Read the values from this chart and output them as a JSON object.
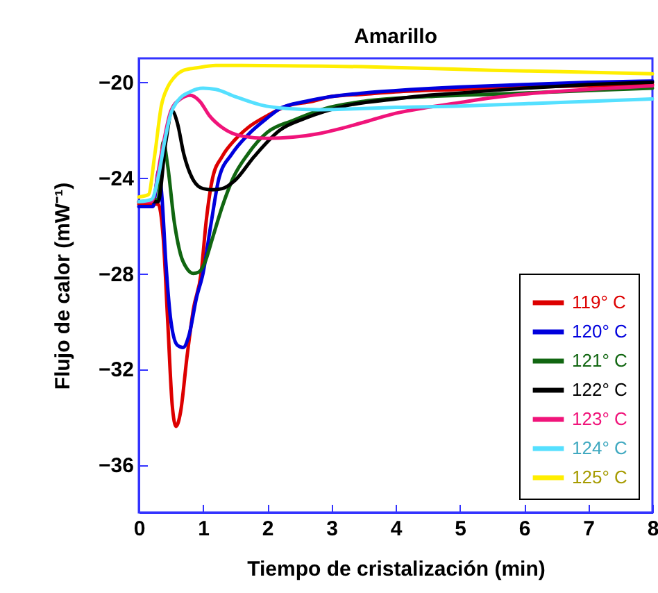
{
  "chart_data": {
    "type": "line",
    "title": "Amarillo",
    "xlabel": "Tiempo de cristalización (min)",
    "ylabel": "Flujo de calor (mW⁻¹)",
    "xlim": [
      0,
      8
    ],
    "xticks": [
      0,
      1,
      2,
      3,
      4,
      5,
      6,
      7,
      8
    ],
    "ylim": [
      -38,
      -19
    ],
    "yticks": [
      -36,
      -32,
      -28,
      -24,
      -20
    ],
    "grid": false,
    "legend": "bottom right",
    "marker": "none",
    "line_style": "solid",
    "series": [
      {
        "name": "119° C",
        "color": "#dd0000",
        "x": [
          0,
          0.3,
          0.38,
          0.45,
          0.52,
          0.58,
          0.65,
          0.75,
          0.85,
          0.97,
          1.05,
          1.15,
          1.3,
          1.5,
          1.7,
          2.0,
          2.3,
          2.7,
          3.0,
          3.5,
          4,
          5,
          6,
          7,
          8
        ],
        "values": [
          -25.1,
          -25.1,
          -26.5,
          -30,
          -33.5,
          -34.4,
          -33.8,
          -31.5,
          -29.5,
          -28,
          -25.8,
          -24,
          -23.1,
          -22.4,
          -21.9,
          -21.4,
          -21,
          -20.8,
          -20.6,
          -20.5,
          -20.4,
          -20.3,
          -20.2,
          -20.15,
          -20.1
        ]
      },
      {
        "name": "120° C",
        "color": "#0000dd",
        "x": [
          0,
          0.22,
          0.31,
          0.36,
          0.42,
          0.5,
          0.6,
          0.69,
          0.78,
          0.9,
          1.0,
          1.12,
          1.25,
          1.45,
          1.7,
          2.0,
          2.2,
          2.6,
          3.0,
          3.5,
          4,
          5,
          6,
          7,
          8
        ],
        "values": [
          -25.2,
          -25.2,
          -23.7,
          -24.8,
          -27.5,
          -30,
          -31,
          -31.1,
          -30.6,
          -29,
          -28,
          -26,
          -24,
          -23,
          -22.2,
          -21.5,
          -21.1,
          -20.8,
          -20.6,
          -20.45,
          -20.35,
          -20.2,
          -20.1,
          -20.0,
          -19.95
        ]
      },
      {
        "name": "121° C",
        "color": "#116611",
        "x": [
          0,
          0.3,
          0.38,
          0.45,
          0.55,
          0.65,
          0.75,
          0.85,
          0.93,
          1.02,
          1.15,
          1.3,
          1.47,
          1.7,
          2.0,
          2.4,
          2.9,
          3.5,
          4.5,
          5.5,
          6.5,
          8
        ],
        "values": [
          -25,
          -24.9,
          -22.5,
          -23.5,
          -25.8,
          -27.2,
          -27.8,
          -28,
          -27.95,
          -27.6,
          -26.5,
          -25.2,
          -24,
          -23,
          -22.1,
          -21.6,
          -21.1,
          -20.8,
          -20.6,
          -20.5,
          -20.4,
          -20.25
        ]
      },
      {
        "name": "122° C",
        "color": "#000000",
        "x": [
          0,
          0.3,
          0.42,
          0.52,
          0.6,
          0.7,
          0.85,
          1.0,
          1.15,
          1.3,
          1.5,
          1.8,
          2.2,
          2.6,
          3.2,
          4,
          4.5,
          5,
          6,
          7,
          8
        ],
        "values": [
          -25,
          -25,
          -22.5,
          -21.2,
          -21.7,
          -23,
          -24.1,
          -24.45,
          -24.5,
          -24.45,
          -24.1,
          -23.1,
          -22,
          -21.5,
          -21,
          -20.7,
          -20.55,
          -20.45,
          -20.25,
          -20.1,
          -20.0
        ]
      },
      {
        "name": "123° C",
        "color": "#f0147a",
        "x": [
          0,
          0.2,
          0.35,
          0.5,
          0.65,
          0.8,
          0.95,
          1.1,
          1.3,
          1.6,
          2.0,
          2.4,
          2.8,
          3.2,
          3.6,
          4,
          4.5,
          5,
          5.5,
          6,
          7,
          8
        ],
        "values": [
          -25,
          -25,
          -23,
          -21.2,
          -20.7,
          -20.55,
          -20.8,
          -21.4,
          -21.9,
          -22.25,
          -22.35,
          -22.3,
          -22.15,
          -21.9,
          -21.6,
          -21.3,
          -21.05,
          -20.85,
          -20.65,
          -20.5,
          -20.3,
          -20.15
        ]
      },
      {
        "name": "124° C",
        "color": "#55e0ff",
        "x": [
          0,
          0.2,
          0.3,
          0.4,
          0.5,
          0.6,
          0.8,
          1.0,
          1.2,
          1.5,
          1.9,
          2.3,
          2.8,
          3.5,
          4,
          5,
          6,
          7,
          8
        ],
        "values": [
          -25,
          -24.9,
          -24,
          -22.5,
          -21.3,
          -20.8,
          -20.4,
          -20.25,
          -20.3,
          -20.6,
          -20.95,
          -21.1,
          -21.15,
          -21.1,
          -21.05,
          -21.0,
          -20.9,
          -20.8,
          -20.7
        ]
      },
      {
        "name": "125° C",
        "color": "#ffee00",
        "x": [
          0,
          0.15,
          0.25,
          0.35,
          0.45,
          0.55,
          0.7,
          0.9,
          1.2,
          1.6,
          2.5,
          3.5,
          4.5,
          5.5,
          6.5,
          8
        ],
        "values": [
          -24.8,
          -24.7,
          -23,
          -21,
          -20.2,
          -19.8,
          -19.5,
          -19.4,
          -19.3,
          -19.3,
          -19.32,
          -19.35,
          -19.42,
          -19.5,
          -19.55,
          -19.65
        ]
      }
    ]
  }
}
